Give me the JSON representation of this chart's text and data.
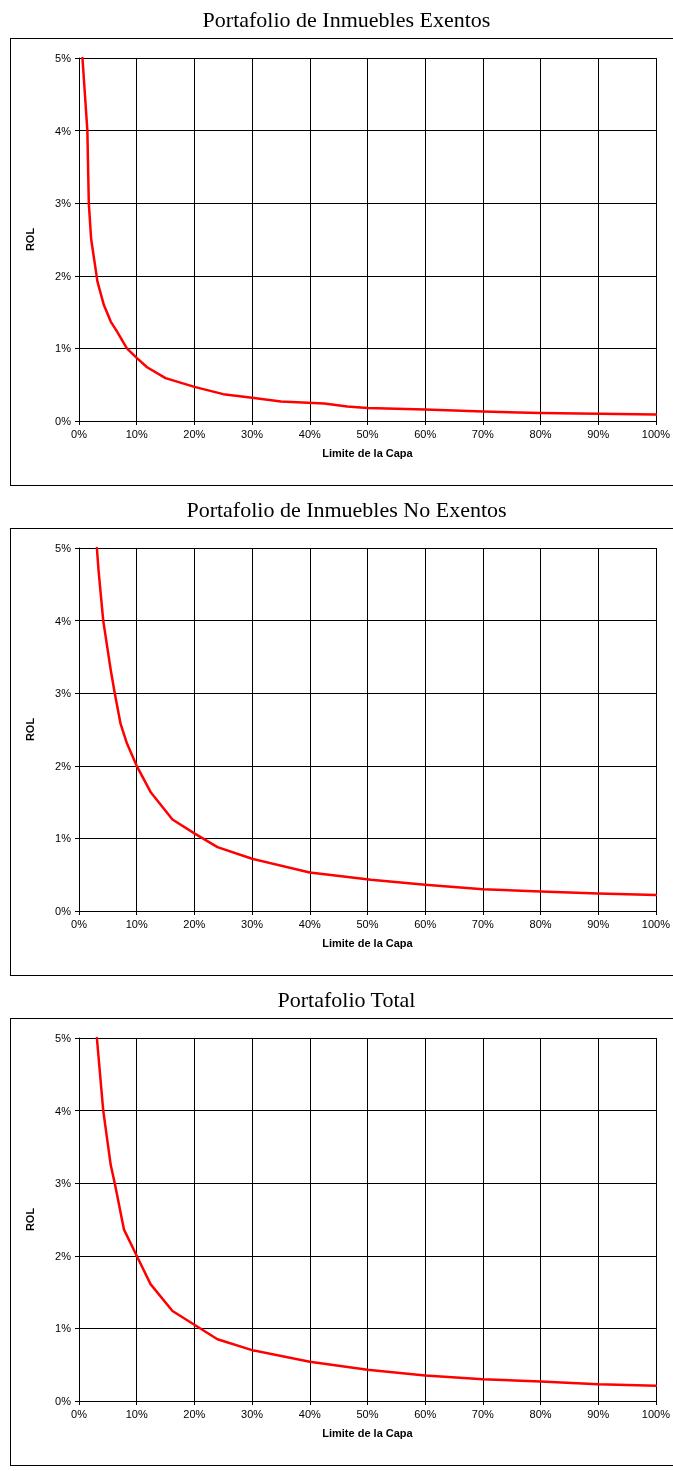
{
  "chart_data": [
    {
      "type": "line",
      "title": "Portafolio de Inmuebles Exentos",
      "xlabel": "Limite de la Capa",
      "ylabel": "ROL",
      "x": [
        0.6,
        1.45,
        1.7,
        2.1,
        3.2,
        4.3,
        5.5,
        6.6,
        8.3,
        10,
        11.8,
        15,
        20,
        25,
        30,
        35,
        42.5,
        46.5,
        50,
        60,
        70,
        80,
        90,
        100
      ],
      "series": [
        {
          "color": "#ff0000",
          "values": [
            5,
            4,
            3,
            2.51,
            1.92,
            1.6,
            1.37,
            1.23,
            1.0,
            0.87,
            0.74,
            0.59,
            0.47,
            0.37,
            0.32,
            0.27,
            0.24,
            0.2,
            0.18,
            0.16,
            0.13,
            0.11,
            0.1,
            0.09
          ]
        }
      ],
      "xlim": [
        0,
        100
      ],
      "ylim": [
        0,
        5
      ],
      "xticks": [
        {
          "value": 0,
          "label": "0%"
        },
        {
          "value": 10,
          "label": "10%"
        },
        {
          "value": 20,
          "label": "20%"
        },
        {
          "value": 30,
          "label": "30%"
        },
        {
          "value": 40,
          "label": "40%"
        },
        {
          "value": 50,
          "label": "50%"
        },
        {
          "value": 60,
          "label": "60%"
        },
        {
          "value": 70,
          "label": "70%"
        },
        {
          "value": 80,
          "label": "80%"
        },
        {
          "value": 90,
          "label": "90%"
        },
        {
          "value": 100,
          "label": "100%"
        }
      ],
      "yticks": [
        {
          "value": 0,
          "label": "0%"
        },
        {
          "value": 1,
          "label": "1%"
        },
        {
          "value": 2,
          "label": "2%"
        },
        {
          "value": 3,
          "label": "3%"
        },
        {
          "value": 4,
          "label": "4%"
        },
        {
          "value": 5,
          "label": "5%"
        }
      ],
      "grid": true,
      "marker": "none",
      "line_style": "solid"
    },
    {
      "type": "line",
      "title": "Portafolio de Inmuebles No Exentos",
      "xlabel": "Limite de la Capa",
      "ylabel": "ROL",
      "x": [
        3.1,
        3.4,
        4.2,
        5.5,
        6.2,
        7.2,
        8.3,
        10,
        12.4,
        16.2,
        20,
        24,
        30,
        40,
        50.6,
        60,
        70,
        80,
        90,
        100
      ],
      "series": [
        {
          "color": "#ff0000",
          "values": [
            5,
            4.68,
            4.0,
            3.32,
            3.0,
            2.58,
            2.31,
            2.0,
            1.64,
            1.26,
            1.07,
            0.88,
            0.72,
            0.53,
            0.43,
            0.36,
            0.3,
            0.27,
            0.24,
            0.22
          ]
        }
      ],
      "xlim": [
        0,
        100
      ],
      "ylim": [
        0,
        5
      ],
      "xticks": [
        {
          "value": 0,
          "label": "0%"
        },
        {
          "value": 10,
          "label": "10%"
        },
        {
          "value": 20,
          "label": "20%"
        },
        {
          "value": 30,
          "label": "30%"
        },
        {
          "value": 40,
          "label": "40%"
        },
        {
          "value": 50,
          "label": "50%"
        },
        {
          "value": 60,
          "label": "60%"
        },
        {
          "value": 70,
          "label": "70%"
        },
        {
          "value": 80,
          "label": "80%"
        },
        {
          "value": 90,
          "label": "90%"
        },
        {
          "value": 100,
          "label": "100%"
        }
      ],
      "yticks": [
        {
          "value": 0,
          "label": "0%"
        },
        {
          "value": 1,
          "label": "1%"
        },
        {
          "value": 2,
          "label": "2%"
        },
        {
          "value": 3,
          "label": "3%"
        },
        {
          "value": 4,
          "label": "4%"
        },
        {
          "value": 5,
          "label": "5%"
        }
      ],
      "grid": true,
      "marker": "none",
      "line_style": "solid"
    },
    {
      "type": "line",
      "title": "Portafolio Total",
      "xlabel": "Limite de la Capa",
      "ylabel": "ROL",
      "x": [
        3.1,
        4.2,
        5.5,
        6.2,
        7.8,
        10,
        12.4,
        16.2,
        20,
        24,
        30,
        40,
        50,
        60,
        70,
        80,
        90,
        100
      ],
      "series": [
        {
          "color": "#ff0000",
          "values": [
            5,
            4.0,
            3.25,
            3.0,
            2.36,
            2.0,
            1.61,
            1.24,
            1.05,
            0.85,
            0.7,
            0.54,
            0.43,
            0.35,
            0.3,
            0.27,
            0.23,
            0.21
          ]
        }
      ],
      "xlim": [
        0,
        100
      ],
      "ylim": [
        0,
        5
      ],
      "xticks": [
        {
          "value": 0,
          "label": "0%"
        },
        {
          "value": 10,
          "label": "10%"
        },
        {
          "value": 20,
          "label": "20%"
        },
        {
          "value": 30,
          "label": "30%"
        },
        {
          "value": 40,
          "label": "40%"
        },
        {
          "value": 50,
          "label": "50%"
        },
        {
          "value": 60,
          "label": "60%"
        },
        {
          "value": 70,
          "label": "70%"
        },
        {
          "value": 80,
          "label": "80%"
        },
        {
          "value": 90,
          "label": "90%"
        },
        {
          "value": 100,
          "label": "100%"
        }
      ],
      "yticks": [
        {
          "value": 0,
          "label": "0%"
        },
        {
          "value": 1,
          "label": "1%"
        },
        {
          "value": 2,
          "label": "2%"
        },
        {
          "value": 3,
          "label": "3%"
        },
        {
          "value": 4,
          "label": "4%"
        },
        {
          "value": 5,
          "label": "5%"
        }
      ],
      "grid": true,
      "marker": "none",
      "line_style": "solid"
    }
  ]
}
